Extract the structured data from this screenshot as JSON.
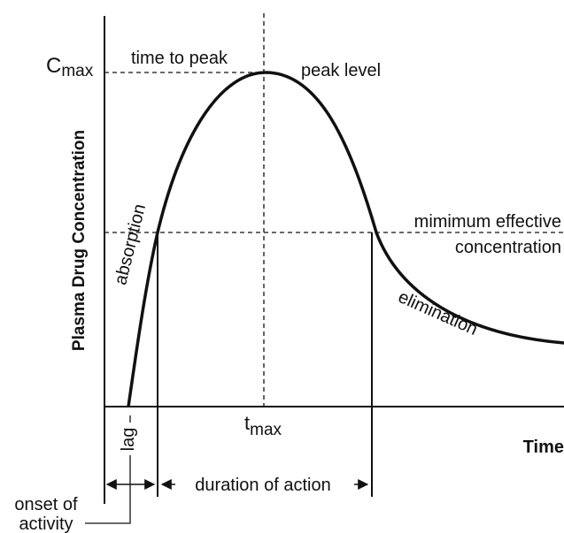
{
  "diagram": {
    "y_axis_label": "Plasma Drug Concentration",
    "x_axis_label": "Time",
    "cmax": {
      "main": "C",
      "sub": "max"
    },
    "tmax": {
      "main": "t",
      "sub": "max"
    },
    "time_to_peak": "time to peak",
    "peak_level": "peak level",
    "min_effective": [
      "mimimum effective",
      "concentration"
    ],
    "absorption": "absorption",
    "elimination": "elimination",
    "lag": "lag",
    "duration": "duration of action",
    "onset": [
      "onset of",
      "activity"
    ]
  }
}
